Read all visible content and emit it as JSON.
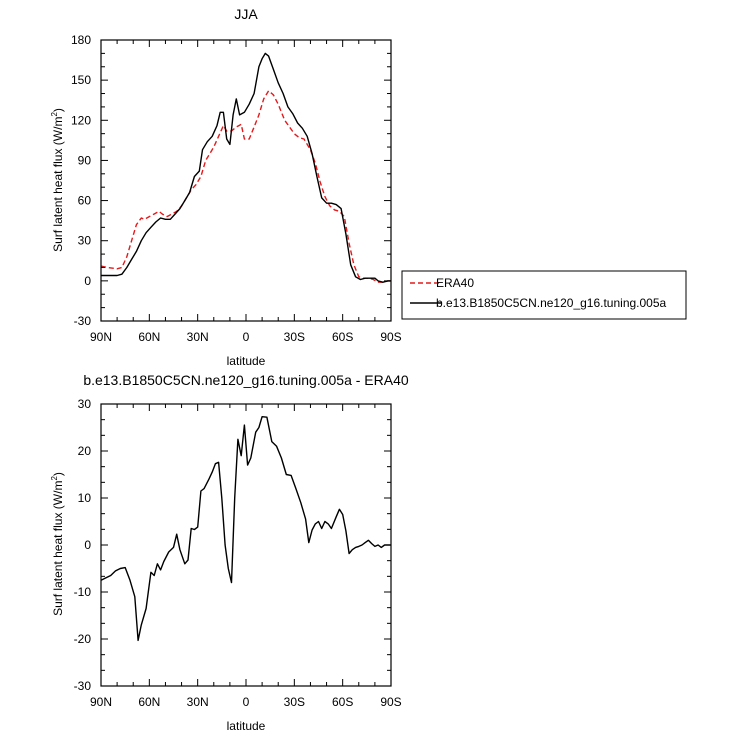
{
  "chart_data": [
    {
      "type": "line",
      "title": "JJA",
      "xlabel": "latitude",
      "ylabel": "Surf latent heat flux (W/m",
      "ylabel_superscript": "2",
      "ylabel_suffix": ")",
      "xlim": [
        90,
        -90
      ],
      "ylim": [
        -30,
        180
      ],
      "x_ticks": [
        90,
        60,
        30,
        0,
        -30,
        -60,
        -90
      ],
      "x_tick_labels": [
        "90N",
        "60N",
        "30N",
        "0",
        "30S",
        "60S",
        "90S"
      ],
      "y_ticks": [
        -30,
        0,
        30,
        60,
        90,
        120,
        150,
        180
      ],
      "y_tick_labels": [
        "-30",
        "0",
        "30",
        "60",
        "90",
        "120",
        "150",
        "180"
      ],
      "grid": false,
      "legend": "right",
      "series": [
        {
          "name": "ERA40",
          "color": "#e41a1c",
          "dash": "dashed",
          "points": [
            [
              90,
              11
            ],
            [
              86,
              10
            ],
            [
              80,
              9
            ],
            [
              77,
              10
            ],
            [
              74,
              18
            ],
            [
              71,
              30
            ],
            [
              68,
              42
            ],
            [
              65,
              47
            ],
            [
              63,
              46
            ],
            [
              60,
              48
            ],
            [
              57,
              50
            ],
            [
              54,
              52
            ],
            [
              52,
              50
            ],
            [
              49,
              48
            ],
            [
              46,
              50
            ],
            [
              43,
              52
            ],
            [
              40,
              56
            ],
            [
              37,
              62
            ],
            [
              34,
              68
            ],
            [
              31,
              72
            ],
            [
              28,
              78
            ],
            [
              25,
              90
            ],
            [
              22,
              96
            ],
            [
              20,
              100
            ],
            [
              17,
              108
            ],
            [
              14,
              116
            ],
            [
              12,
              112
            ],
            [
              9,
              112
            ],
            [
              6,
              115
            ],
            [
              3,
              117
            ],
            [
              1,
              106
            ],
            [
              -2,
              106
            ],
            [
              -5,
              115
            ],
            [
              -8,
              124
            ],
            [
              -11,
              136
            ],
            [
              -14,
              142
            ],
            [
              -17,
              139
            ],
            [
              -20,
              132
            ],
            [
              -24,
              120
            ],
            [
              -27,
              115
            ],
            [
              -30,
              110
            ],
            [
              -33,
              107
            ],
            [
              -36,
              106
            ],
            [
              -40,
              98
            ],
            [
              -43,
              88
            ],
            [
              -46,
              74
            ],
            [
              -49,
              63
            ],
            [
              -52,
              56
            ],
            [
              -55,
              53
            ],
            [
              -58,
              52
            ],
            [
              -61,
              48
            ],
            [
              -64,
              28
            ],
            [
              -67,
              12
            ],
            [
              -70,
              3
            ],
            [
              -73,
              2
            ],
            [
              -76,
              2
            ],
            [
              -79,
              1
            ],
            [
              -82,
              -1
            ],
            [
              -85,
              -1
            ],
            [
              -88,
              0
            ],
            [
              -90,
              0
            ]
          ]
        },
        {
          "name": "b.e13.B1850C5CN.ne120_g16.tuning.005a",
          "color": "#000000",
          "dash": "solid",
          "points": [
            [
              90,
              4
            ],
            [
              86,
              4
            ],
            [
              80,
              4
            ],
            [
              77,
              5
            ],
            [
              74,
              10
            ],
            [
              71,
              16
            ],
            [
              68,
              22
            ],
            [
              65,
              30
            ],
            [
              62,
              36
            ],
            [
              59,
              40
            ],
            [
              56,
              44
            ],
            [
              53,
              47
            ],
            [
              50,
              46
            ],
            [
              47,
              46
            ],
            [
              44,
              50
            ],
            [
              41,
              54
            ],
            [
              38,
              60
            ],
            [
              35,
              66
            ],
            [
              32,
              78
            ],
            [
              29,
              82
            ],
            [
              27,
              98
            ],
            [
              24,
              104
            ],
            [
              21,
              108
            ],
            [
              18,
              116
            ],
            [
              16,
              126
            ],
            [
              14,
              126
            ],
            [
              12,
              106
            ],
            [
              10,
              102
            ],
            [
              8,
              124
            ],
            [
              6,
              136
            ],
            [
              4,
              124
            ],
            [
              1,
              126
            ],
            [
              -2,
              132
            ],
            [
              -5,
              140
            ],
            [
              -8,
              160
            ],
            [
              -10,
              166
            ],
            [
              -12,
              170
            ],
            [
              -14,
              168
            ],
            [
              -17,
              158
            ],
            [
              -20,
              148
            ],
            [
              -23,
              140
            ],
            [
              -26,
              130
            ],
            [
              -29,
              125
            ],
            [
              -32,
              118
            ],
            [
              -35,
              114
            ],
            [
              -38,
              108
            ],
            [
              -41,
              95
            ],
            [
              -44,
              78
            ],
            [
              -47,
              62
            ],
            [
              -50,
              58
            ],
            [
              -53,
              58
            ],
            [
              -56,
              57
            ],
            [
              -59,
              54
            ],
            [
              -62,
              35
            ],
            [
              -65,
              12
            ],
            [
              -68,
              3
            ],
            [
              -71,
              1
            ],
            [
              -74,
              2
            ],
            [
              -77,
              2
            ],
            [
              -80,
              2
            ],
            [
              -82,
              0
            ],
            [
              -85,
              -1
            ],
            [
              -88,
              0
            ],
            [
              -90,
              0
            ]
          ]
        }
      ]
    },
    {
      "type": "line",
      "title": "b.e13.B1850C5CN.ne120_g16.tuning.005a - ERA40",
      "xlabel": "latitude",
      "ylabel": "Surf latent heat flux (W/m",
      "ylabel_superscript": "2",
      "ylabel_suffix": ")",
      "xlim": [
        90,
        -90
      ],
      "ylim": [
        -30,
        30
      ],
      "x_ticks": [
        90,
        60,
        30,
        0,
        -30,
        -60,
        -90
      ],
      "x_tick_labels": [
        "90N",
        "60N",
        "30N",
        "0",
        "30S",
        "60S",
        "90S"
      ],
      "y_ticks": [
        -30,
        -20,
        -10,
        0,
        10,
        20,
        30
      ],
      "y_tick_labels": [
        "-30",
        "-20",
        "-10",
        "0",
        "10",
        "20",
        "30"
      ],
      "grid": false,
      "series": [
        {
          "color": "#000000",
          "dash": "solid",
          "points": [
            [
              90,
              -7.5
            ],
            [
              87,
              -7
            ],
            [
              84,
              -6.5
            ],
            [
              81,
              -5.5
            ],
            [
              78,
              -5
            ],
            [
              75,
              -4.8
            ],
            [
              72,
              -7.5
            ],
            [
              69,
              -11
            ],
            [
              67,
              -20.3
            ],
            [
              65,
              -17
            ],
            [
              62,
              -13.5
            ],
            [
              59,
              -5.8
            ],
            [
              57,
              -6.5
            ],
            [
              55,
              -4
            ],
            [
              53,
              -5.3
            ],
            [
              51,
              -3.5
            ],
            [
              48,
              -1.5
            ],
            [
              45,
              -0.5
            ],
            [
              43,
              2.3
            ],
            [
              41,
              -1
            ],
            [
              38,
              -4
            ],
            [
              36,
              -3.2
            ],
            [
              34,
              3.5
            ],
            [
              32,
              3.3
            ],
            [
              30,
              3.8
            ],
            [
              28,
              11.5
            ],
            [
              26,
              12
            ],
            [
              23,
              14
            ],
            [
              21,
              15.5
            ],
            [
              19,
              17.3
            ],
            [
              17,
              17.6
            ],
            [
              15,
              10
            ],
            [
              13,
              0
            ],
            [
              11,
              -5
            ],
            [
              9,
              -8
            ],
            [
              7,
              10
            ],
            [
              5,
              22.5
            ],
            [
              3,
              19
            ],
            [
              1,
              25.5
            ],
            [
              -1,
              17
            ],
            [
              -3,
              18.5
            ],
            [
              -6,
              24
            ],
            [
              -8,
              25
            ],
            [
              -10,
              27.3
            ],
            [
              -13,
              27.2
            ],
            [
              -16,
              22
            ],
            [
              -19,
              21
            ],
            [
              -22,
              18.5
            ],
            [
              -25,
              15
            ],
            [
              -28,
              14.8
            ],
            [
              -31,
              12
            ],
            [
              -34,
              9
            ],
            [
              -37,
              5.5
            ],
            [
              -39,
              0.5
            ],
            [
              -41,
              3.2
            ],
            [
              -43,
              4.5
            ],
            [
              -45,
              5
            ],
            [
              -47,
              3.5
            ],
            [
              -49,
              5
            ],
            [
              -51,
              4.5
            ],
            [
              -53,
              3.5
            ],
            [
              -56,
              6
            ],
            [
              -58,
              7.6
            ],
            [
              -60,
              6.5
            ],
            [
              -62,
              3
            ],
            [
              -64,
              -1.8
            ],
            [
              -66,
              -1
            ],
            [
              -68,
              -0.5
            ],
            [
              -70,
              -0.3
            ],
            [
              -72,
              0
            ],
            [
              -74,
              0.5
            ],
            [
              -76,
              1
            ],
            [
              -78,
              0.3
            ],
            [
              -80,
              -0.3
            ],
            [
              -82,
              0
            ],
            [
              -84,
              -0.5
            ],
            [
              -86,
              0
            ],
            [
              -88,
              0
            ],
            [
              -90,
              0
            ]
          ]
        }
      ]
    }
  ]
}
